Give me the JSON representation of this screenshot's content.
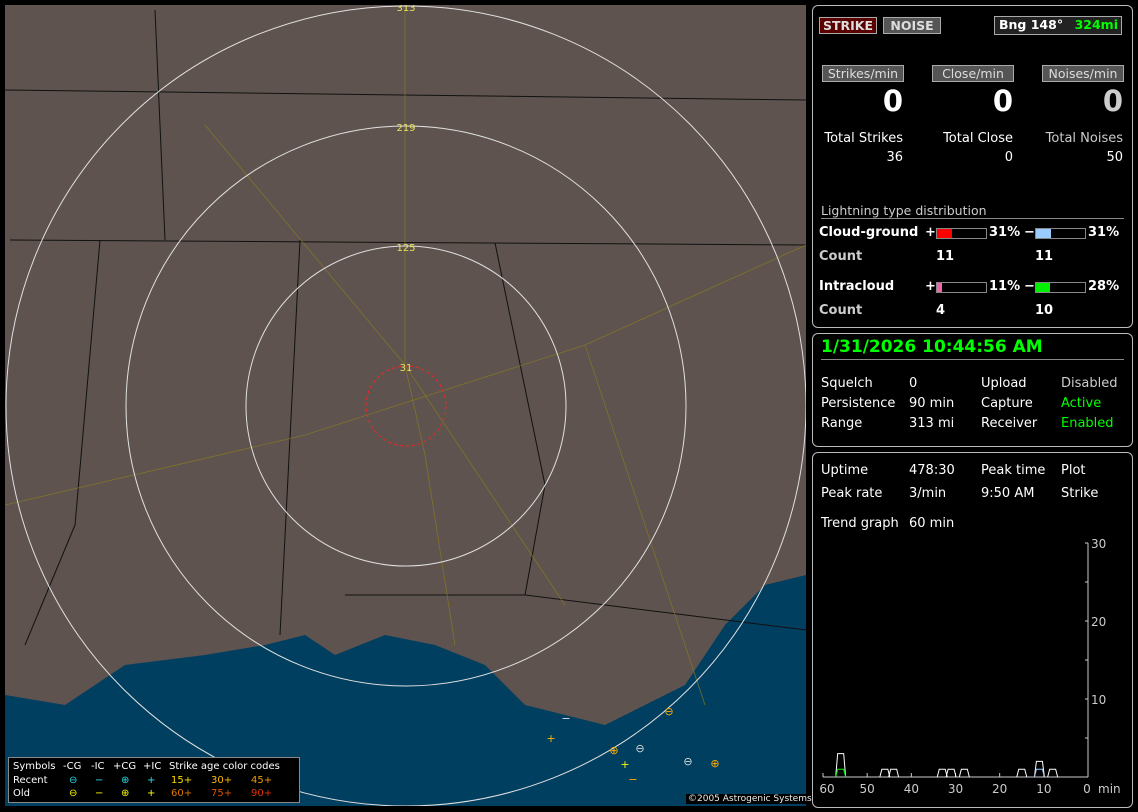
{
  "map": {
    "range_labels": [
      "313",
      "219",
      "125",
      "31"
    ],
    "copyright": "©2005 Astrogenic Systems",
    "colors": {
      "land": "#5e534f",
      "water": "#003f5f",
      "rings": "#e0e0e0",
      "close_ring": "#ff2020"
    }
  },
  "legend": {
    "symbols_label": "Symbols",
    "cols": [
      "-CG",
      "-IC",
      "+CG",
      "+IC"
    ],
    "rows": [
      {
        "label": "Recent",
        "symbols": [
          "⊖",
          "−",
          "⊕",
          "+"
        ],
        "color": "#33ddee"
      },
      {
        "label": "Old",
        "symbols": [
          "⊖",
          "−",
          "⊕",
          "+"
        ],
        "color": "#ffff00"
      }
    ],
    "age_title": "Strike age color codes",
    "age_codes": [
      {
        "t": "15+",
        "c": "#ffdd00"
      },
      {
        "t": "30+",
        "c": "#ffbb00"
      },
      {
        "t": "45+",
        "c": "#ee9900"
      },
      {
        "t": "60+",
        "c": "#dd7700"
      },
      {
        "t": "75+",
        "c": "#dd5500"
      },
      {
        "t": "90+",
        "c": "#dd3300"
      }
    ]
  },
  "top": {
    "strike_btn": "STRIKE",
    "noise_btn": "NOISE",
    "bearing": "Bng 148°",
    "distance": "324mi",
    "rates": [
      {
        "label": "Strikes/min",
        "value": "0"
      },
      {
        "label": "Close/min",
        "value": "0"
      },
      {
        "label": "Noises/min",
        "value": "0"
      }
    ],
    "totals": [
      {
        "label": "Total Strikes",
        "value": "36"
      },
      {
        "label": "Total Close",
        "value": "0"
      },
      {
        "label": "Total Noises",
        "value": "50"
      }
    ]
  },
  "distribution": {
    "title": "Lightning type distribution",
    "cg": {
      "label": "Cloud-ground",
      "pos_pct": 31,
      "neg_pct": 31,
      "pos_text": "31%",
      "neg_text": "31%",
      "count_label": "Count",
      "pos_count": "11",
      "neg_count": "11"
    },
    "ic": {
      "label": "Intracloud",
      "pos_pct": 11,
      "neg_pct": 28,
      "pos_text": "11%",
      "neg_text": "28%",
      "count_label": "Count",
      "pos_count": "4",
      "neg_count": "10"
    },
    "colors": {
      "cg_pos": "#ff0000",
      "cg_neg": "#99ccff",
      "ic_pos": "#ee66aa",
      "ic_neg": "#00ee00"
    },
    "plus": "+",
    "minus": "−"
  },
  "status": {
    "datetime": "1/31/2026 10:44:56 AM",
    "rows": [
      [
        "Squelch",
        "0",
        "Upload",
        "Disabled"
      ],
      [
        "Persistence",
        "90 min",
        "Capture",
        "Active"
      ],
      [
        "Range",
        "313 mi",
        "Receiver",
        "Enabled"
      ]
    ]
  },
  "stats": {
    "uptime_label": "Uptime",
    "uptime": "478:30",
    "peak_time_label": "Peak time",
    "plot_label": "Plot",
    "peak_rate_label": "Peak rate",
    "peak_rate": "3/min",
    "peak_time": "9:50 AM",
    "plot": "Strike",
    "trend_label": "Trend graph",
    "trend": "60 min"
  },
  "chart_data": {
    "type": "line",
    "x_ticks": [
      "60",
      "50",
      "40",
      "30",
      "20",
      "10",
      "0"
    ],
    "x_unit": "min",
    "y_ticks": [
      "30",
      "20",
      "10"
    ],
    "xlim": [
      60,
      0
    ],
    "ylim": [
      0,
      30
    ],
    "series": [
      {
        "color": "#ffffff",
        "points": [
          [
            56,
            3
          ],
          [
            46,
            1
          ],
          [
            44,
            1
          ],
          [
            33,
            1
          ],
          [
            31,
            1
          ],
          [
            28,
            1
          ],
          [
            15,
            1
          ],
          [
            11,
            2
          ],
          [
            8,
            1
          ]
        ]
      },
      {
        "color": "#00ee00",
        "points": [
          [
            56,
            1
          ]
        ]
      },
      {
        "color": "#99ccff",
        "points": [
          [
            11,
            1
          ]
        ]
      }
    ]
  }
}
